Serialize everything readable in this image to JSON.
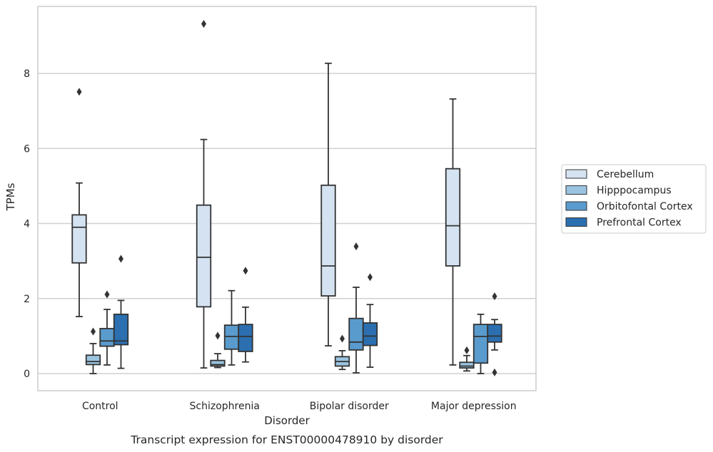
{
  "chart_data": {
    "type": "box",
    "caption": "Transcript expression for ENST00000478910 by disorder",
    "xlabel": "Disorder",
    "ylabel": "TPMs",
    "ylim": [
      -0.45,
      9.9
    ],
    "yticks": [
      0,
      2,
      4,
      6,
      8
    ],
    "grid": true,
    "legend_position": "right",
    "categories": [
      "Control",
      "Schizophrenia",
      "Bipolar disorder",
      "Major depression"
    ],
    "series": [
      {
        "name": "Cerebellum",
        "color": "#d4e2f1",
        "boxes": [
          {
            "whislo": 1.52,
            "q1": 2.95,
            "med": 3.9,
            "q3": 4.23,
            "whishi": 5.08,
            "fliers": [
              7.51
            ]
          },
          {
            "whislo": 0.15,
            "q1": 1.78,
            "med": 3.1,
            "q3": 4.49,
            "whishi": 6.24,
            "fliers": [
              9.32
            ]
          },
          {
            "whislo": 0.74,
            "q1": 2.07,
            "med": 2.87,
            "q3": 5.02,
            "whishi": 8.27,
            "fliers": []
          },
          {
            "whislo": 0.23,
            "q1": 2.87,
            "med": 3.94,
            "q3": 5.46,
            "whishi": 7.32,
            "fliers": []
          }
        ]
      },
      {
        "name": "Hipppocampus",
        "color": "#9ac4e0",
        "boxes": [
          {
            "whislo": 0.0,
            "q1": 0.24,
            "med": 0.32,
            "q3": 0.49,
            "whishi": 0.8,
            "fliers": [
              1.12
            ]
          },
          {
            "whislo": 0.16,
            "q1": 0.2,
            "med": 0.24,
            "q3": 0.35,
            "whishi": 0.53,
            "fliers": [
              1.01
            ]
          },
          {
            "whislo": 0.11,
            "q1": 0.2,
            "med": 0.32,
            "q3": 0.45,
            "whishi": 0.61,
            "fliers": [
              0.93
            ]
          },
          {
            "whislo": 0.07,
            "q1": 0.15,
            "med": 0.2,
            "q3": 0.3,
            "whishi": 0.48,
            "fliers": [
              0.62
            ]
          }
        ]
      },
      {
        "name": "Orbitofontal Cortex",
        "color": "#5a9bcd",
        "boxes": [
          {
            "whislo": 0.23,
            "q1": 0.73,
            "med": 0.87,
            "q3": 1.2,
            "whishi": 1.71,
            "fliers": [
              2.11
            ]
          },
          {
            "whislo": 0.23,
            "q1": 0.65,
            "med": 0.99,
            "q3": 1.29,
            "whishi": 2.21,
            "fliers": []
          },
          {
            "whislo": 0.02,
            "q1": 0.63,
            "med": 0.84,
            "q3": 1.47,
            "whishi": 2.3,
            "fliers": [
              3.39
            ]
          },
          {
            "whislo": 0.0,
            "q1": 0.28,
            "med": 0.99,
            "q3": 1.31,
            "whishi": 1.58,
            "fliers": []
          }
        ]
      },
      {
        "name": "Prefrontal Cortex",
        "color": "#2b6fb0",
        "boxes": [
          {
            "whislo": 0.14,
            "q1": 0.77,
            "med": 0.87,
            "q3": 1.58,
            "whishi": 1.95,
            "fliers": [
              3.06
            ]
          },
          {
            "whislo": 0.31,
            "q1": 0.59,
            "med": 0.99,
            "q3": 1.31,
            "whishi": 1.77,
            "fliers": [
              2.74
            ]
          },
          {
            "whislo": 0.17,
            "q1": 0.75,
            "med": 1.0,
            "q3": 1.35,
            "whishi": 1.84,
            "fliers": [
              2.57
            ]
          },
          {
            "whislo": 0.63,
            "q1": 0.84,
            "med": 1.0,
            "q3": 1.31,
            "whishi": 1.44,
            "fliers": [
              2.06,
              0.03
            ]
          }
        ]
      }
    ]
  }
}
